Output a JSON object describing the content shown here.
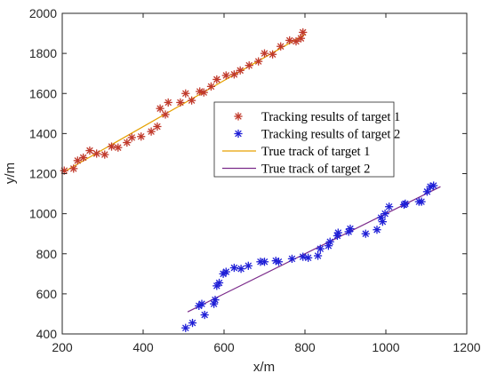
{
  "chart_data": {
    "type": "scatter",
    "title": "",
    "xlabel": "x/m",
    "ylabel": "y/m",
    "xlim": [
      200,
      1200
    ],
    "ylim": [
      400,
      2000
    ],
    "x_ticks": [
      "200",
      "400",
      "600",
      "800",
      "1000",
      "1200"
    ],
    "y_ticks": [
      "400",
      "600",
      "800",
      "1000",
      "1200",
      "1400",
      "1600",
      "1800",
      "2000"
    ],
    "grid": false,
    "legend_position": "center-right",
    "series": [
      {
        "name": "Tracking results of target 1",
        "kind": "markers",
        "marker": "asterisk",
        "color": "#c0392b",
        "x": [
          205,
          228,
          238,
          252,
          268,
          285,
          305,
          322,
          338,
          360,
          372,
          395,
          420,
          435,
          442,
          455,
          462,
          492,
          505,
          520,
          540,
          550,
          568,
          582,
          605,
          625,
          640,
          662,
          685,
          700,
          720,
          740,
          762,
          778,
          790,
          795
        ],
        "y": [
          1215,
          1225,
          1265,
          1280,
          1315,
          1300,
          1295,
          1335,
          1330,
          1355,
          1380,
          1385,
          1410,
          1435,
          1525,
          1495,
          1555,
          1555,
          1600,
          1565,
          1610,
          1605,
          1635,
          1670,
          1690,
          1695,
          1715,
          1740,
          1760,
          1800,
          1795,
          1835,
          1865,
          1860,
          1875,
          1905
        ]
      },
      {
        "name": "Tracking results of target 2",
        "kind": "markers",
        "marker": "asterisk",
        "color": "#1f1fd6",
        "x": [
          505,
          522,
          538,
          545,
          552,
          575,
          578,
          582,
          588,
          598,
          605,
          625,
          642,
          660,
          690,
          700,
          728,
          735,
          768,
          795,
          808,
          832,
          838,
          858,
          862,
          880,
          882,
          908,
          912,
          950,
          978,
          988,
          992,
          998,
          1008,
          1045,
          1048,
          1082,
          1088,
          1102,
          1110,
          1118
        ],
        "y": [
          430,
          455,
          540,
          550,
          495,
          550,
          570,
          640,
          655,
          700,
          710,
          730,
          725,
          740,
          760,
          760,
          765,
          760,
          775,
          785,
          780,
          790,
          825,
          840,
          860,
          890,
          905,
          910,
          925,
          900,
          920,
          980,
          960,
          1000,
          1035,
          1045,
          1050,
          1060,
          1060,
          1110,
          1135,
          1140
        ]
      },
      {
        "name": "True track of target 1",
        "kind": "line",
        "color": "#e6a100",
        "x": [
          205,
          800
        ],
        "y": [
          1210,
          1895
        ]
      },
      {
        "name": "True track of target 2",
        "kind": "line",
        "color": "#7a2a8a",
        "x": [
          510,
          1135
        ],
        "y": [
          510,
          1135
        ]
      }
    ]
  }
}
